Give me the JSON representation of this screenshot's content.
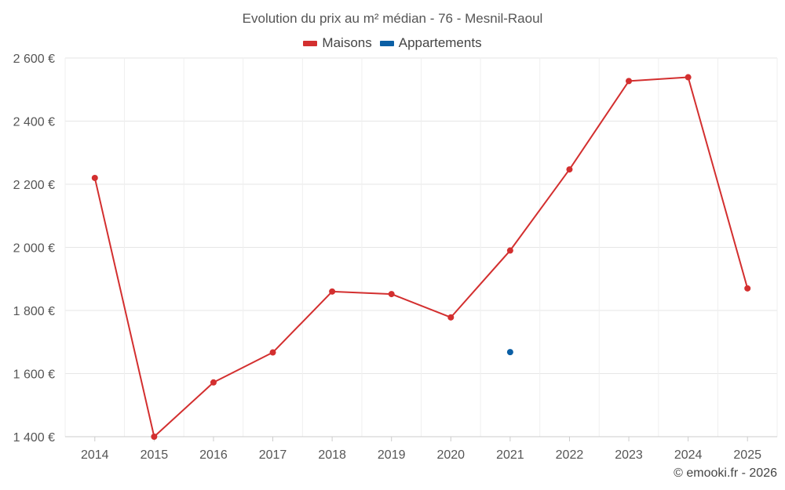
{
  "chart_data": {
    "type": "line",
    "title": "Evolution du prix au m² médian - 76 - Mesnil-Raoul",
    "xlabel": "",
    "ylabel": "",
    "categories": [
      "2014",
      "2015",
      "2016",
      "2017",
      "2018",
      "2019",
      "2020",
      "2021",
      "2022",
      "2023",
      "2024",
      "2025"
    ],
    "ylim": [
      1400,
      2600
    ],
    "yticks": [
      1400,
      1600,
      1800,
      2000,
      2200,
      2400,
      2600
    ],
    "ytick_labels": [
      "1 400 €",
      "1 600 €",
      "1 800 €",
      "2 000 €",
      "2 200 €",
      "2 400 €",
      "2 600 €"
    ],
    "grid": true,
    "legend_position": "top-center",
    "series": [
      {
        "name": "Maisons",
        "color": "#d32f2f",
        "values": [
          2220,
          1400,
          1572,
          1667,
          1860,
          1852,
          1778,
          1990,
          2247,
          2527,
          2539,
          1870
        ]
      },
      {
        "name": "Appartements",
        "color": "#0b5fa5",
        "values": [
          null,
          null,
          null,
          null,
          null,
          null,
          null,
          1668,
          null,
          null,
          null,
          null
        ]
      }
    ]
  },
  "credit": "© emooki.fr - 2026"
}
